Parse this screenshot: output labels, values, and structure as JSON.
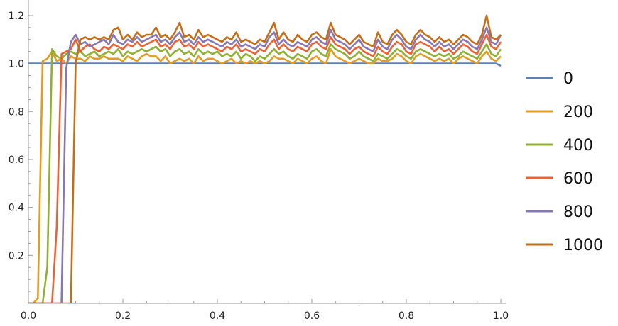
{
  "chart_data": {
    "type": "line",
    "title": "",
    "xlabel": "",
    "ylabel": "",
    "xlim": [
      0,
      1
    ],
    "ylim": [
      0,
      1.25
    ],
    "x_ticks": [
      "0.0",
      "0.2",
      "0.4",
      "0.6",
      "0.8",
      "1.0"
    ],
    "y_ticks": [
      "0.2",
      "0.4",
      "0.6",
      "0.8",
      "1.0",
      "1.2"
    ],
    "grid": false,
    "legend_position": "right",
    "x": [
      0.0,
      0.01,
      0.02,
      0.03,
      0.04,
      0.05,
      0.06,
      0.07,
      0.08,
      0.09,
      0.1,
      0.11,
      0.12,
      0.13,
      0.14,
      0.15,
      0.16,
      0.17,
      0.18,
      0.19,
      0.2,
      0.21,
      0.22,
      0.23,
      0.24,
      0.25,
      0.26,
      0.27,
      0.28,
      0.29,
      0.3,
      0.31,
      0.32,
      0.33,
      0.34,
      0.35,
      0.36,
      0.37,
      0.38,
      0.39,
      0.4,
      0.41,
      0.42,
      0.43,
      0.44,
      0.45,
      0.46,
      0.47,
      0.48,
      0.49,
      0.5,
      0.51,
      0.52,
      0.53,
      0.54,
      0.55,
      0.56,
      0.57,
      0.58,
      0.59,
      0.6,
      0.61,
      0.62,
      0.63,
      0.64,
      0.65,
      0.66,
      0.67,
      0.68,
      0.69,
      0.7,
      0.71,
      0.72,
      0.73,
      0.74,
      0.75,
      0.76,
      0.77,
      0.78,
      0.79,
      0.8,
      0.81,
      0.82,
      0.83,
      0.84,
      0.85,
      0.86,
      0.87,
      0.88,
      0.89,
      0.9,
      0.91,
      0.92,
      0.93,
      0.94,
      0.95,
      0.96,
      0.97,
      0.98,
      0.99,
      1.0
    ],
    "series": [
      {
        "name": "0",
        "color": "#5e81b5",
        "values": [
          1.0,
          1.0,
          1.0,
          1.0,
          1.0,
          1.0,
          1.0,
          1.0,
          1.0,
          1.0,
          1.0,
          1.0,
          1.0,
          1.0,
          1.0,
          1.0,
          1.0,
          1.0,
          1.0,
          1.0,
          1.0,
          1.0,
          1.0,
          1.0,
          1.0,
          1.0,
          1.0,
          1.0,
          1.0,
          1.0,
          1.0,
          1.0,
          1.0,
          1.0,
          1.0,
          1.0,
          1.0,
          1.0,
          1.0,
          1.0,
          1.0,
          1.0,
          1.0,
          1.0,
          1.0,
          1.0,
          1.0,
          1.0,
          1.0,
          1.0,
          1.0,
          1.0,
          1.0,
          1.0,
          1.0,
          1.0,
          1.0,
          1.0,
          1.0,
          1.0,
          1.0,
          1.0,
          1.0,
          1.0,
          1.0,
          1.0,
          1.0,
          1.0,
          1.0,
          1.0,
          1.0,
          1.0,
          1.0,
          1.0,
          1.0,
          1.0,
          1.0,
          1.0,
          1.0,
          1.0,
          1.0,
          1.0,
          1.0,
          1.0,
          1.0,
          1.0,
          1.0,
          1.0,
          1.0,
          1.0,
          1.0,
          1.0,
          1.0,
          1.0,
          1.0,
          1.0,
          1.0,
          1.0,
          1.0,
          1.0,
          0.99
        ]
      },
      {
        "name": "200",
        "color": "#e19c24",
        "values": [
          0.0,
          0.0,
          0.02,
          1.01,
          1.02,
          1.05,
          1.01,
          1.02,
          1.0,
          1.03,
          1.02,
          1.02,
          1.01,
          1.03,
          1.02,
          1.02,
          1.03,
          1.02,
          1.02,
          1.02,
          1.01,
          1.03,
          1.02,
          1.01,
          1.03,
          1.04,
          1.03,
          1.03,
          1.01,
          1.03,
          1.0,
          1.01,
          1.02,
          1.01,
          1.02,
          1.0,
          1.03,
          1.01,
          1.02,
          1.02,
          1.01,
          1.0,
          1.01,
          1.02,
          1.0,
          1.01,
          1.0,
          1.01,
          1.0,
          1.01,
          1.0,
          1.01,
          1.03,
          1.02,
          1.02,
          1.01,
          1.0,
          1.02,
          1.01,
          1.0,
          1.02,
          1.03,
          1.01,
          1.0,
          1.06,
          1.03,
          1.02,
          1.01,
          1.0,
          1.01,
          1.02,
          1.01,
          1.0,
          1.0,
          1.02,
          1.01,
          1.01,
          1.02,
          1.04,
          1.03,
          1.01,
          1.0,
          1.03,
          1.04,
          1.03,
          1.02,
          1.01,
          1.02,
          1.01,
          1.02,
          1.0,
          1.02,
          1.03,
          1.02,
          1.01,
          1.0,
          1.03,
          1.05,
          1.02,
          1.01,
          1.03
        ]
      },
      {
        "name": "400",
        "color": "#8fb032",
        "values": [
          0.0,
          0.0,
          0.0,
          0.0,
          0.15,
          1.06,
          1.03,
          1.02,
          1.04,
          1.05,
          1.04,
          1.05,
          1.03,
          1.04,
          1.05,
          1.03,
          1.04,
          1.05,
          1.04,
          1.06,
          1.03,
          1.05,
          1.04,
          1.05,
          1.06,
          1.05,
          1.06,
          1.07,
          1.05,
          1.06,
          1.03,
          1.05,
          1.06,
          1.04,
          1.05,
          1.03,
          1.06,
          1.04,
          1.05,
          1.04,
          1.05,
          1.03,
          1.04,
          1.03,
          1.05,
          1.02,
          1.04,
          1.03,
          1.01,
          1.03,
          1.02,
          1.04,
          1.06,
          1.04,
          1.05,
          1.03,
          1.02,
          1.04,
          1.03,
          1.02,
          1.05,
          1.06,
          1.04,
          1.03,
          1.08,
          1.06,
          1.05,
          1.04,
          1.02,
          1.03,
          1.05,
          1.03,
          1.02,
          1.01,
          1.04,
          1.03,
          1.02,
          1.04,
          1.06,
          1.05,
          1.03,
          1.02,
          1.05,
          1.06,
          1.05,
          1.04,
          1.03,
          1.04,
          1.03,
          1.04,
          1.02,
          1.03,
          1.05,
          1.04,
          1.03,
          1.02,
          1.05,
          1.08,
          1.04,
          1.03,
          1.06
        ]
      },
      {
        "name": "600",
        "color": "#eb6235",
        "values": [
          0.0,
          0.0,
          0.0,
          0.0,
          0.0,
          0.0,
          0.32,
          1.04,
          1.05,
          1.06,
          1.1,
          1.05,
          1.07,
          1.08,
          1.06,
          1.05,
          1.07,
          1.06,
          1.08,
          1.07,
          1.06,
          1.08,
          1.07,
          1.09,
          1.07,
          1.08,
          1.09,
          1.1,
          1.07,
          1.08,
          1.06,
          1.09,
          1.1,
          1.07,
          1.08,
          1.06,
          1.09,
          1.07,
          1.08,
          1.07,
          1.06,
          1.05,
          1.07,
          1.06,
          1.08,
          1.05,
          1.06,
          1.05,
          1.04,
          1.06,
          1.05,
          1.08,
          1.1,
          1.06,
          1.08,
          1.06,
          1.05,
          1.07,
          1.06,
          1.05,
          1.08,
          1.09,
          1.07,
          1.06,
          1.11,
          1.08,
          1.07,
          1.06,
          1.04,
          1.06,
          1.07,
          1.05,
          1.04,
          1.03,
          1.07,
          1.05,
          1.04,
          1.07,
          1.09,
          1.08,
          1.05,
          1.04,
          1.08,
          1.09,
          1.08,
          1.07,
          1.05,
          1.07,
          1.05,
          1.06,
          1.04,
          1.06,
          1.08,
          1.07,
          1.05,
          1.04,
          1.08,
          1.12,
          1.07,
          1.06,
          1.09
        ]
      },
      {
        "name": "800",
        "color": "#8778b3",
        "values": [
          0.0,
          0.0,
          0.0,
          0.0,
          0.0,
          0.0,
          0.0,
          0.0,
          0.98,
          1.09,
          1.12,
          1.08,
          1.09,
          1.07,
          1.08,
          1.09,
          1.1,
          1.08,
          1.12,
          1.09,
          1.08,
          1.1,
          1.09,
          1.11,
          1.09,
          1.1,
          1.11,
          1.12,
          1.09,
          1.1,
          1.08,
          1.11,
          1.13,
          1.09,
          1.1,
          1.08,
          1.11,
          1.09,
          1.1,
          1.09,
          1.08,
          1.07,
          1.09,
          1.08,
          1.1,
          1.07,
          1.08,
          1.07,
          1.06,
          1.08,
          1.07,
          1.11,
          1.13,
          1.08,
          1.1,
          1.08,
          1.07,
          1.09,
          1.08,
          1.07,
          1.1,
          1.11,
          1.09,
          1.08,
          1.14,
          1.1,
          1.09,
          1.08,
          1.06,
          1.08,
          1.1,
          1.07,
          1.06,
          1.05,
          1.1,
          1.07,
          1.06,
          1.1,
          1.12,
          1.1,
          1.07,
          1.06,
          1.1,
          1.12,
          1.1,
          1.09,
          1.07,
          1.09,
          1.07,
          1.08,
          1.06,
          1.08,
          1.1,
          1.09,
          1.07,
          1.06,
          1.1,
          1.15,
          1.09,
          1.08,
          1.12
        ]
      },
      {
        "name": "1000",
        "color": "#c56e1a",
        "values": [
          0.0,
          0.0,
          0.0,
          0.0,
          0.0,
          0.0,
          0.0,
          0.0,
          0.0,
          0.0,
          1.0,
          1.1,
          1.11,
          1.1,
          1.11,
          1.1,
          1.11,
          1.1,
          1.14,
          1.15,
          1.1,
          1.12,
          1.1,
          1.13,
          1.11,
          1.12,
          1.12,
          1.15,
          1.11,
          1.12,
          1.1,
          1.13,
          1.17,
          1.11,
          1.12,
          1.1,
          1.14,
          1.11,
          1.12,
          1.11,
          1.1,
          1.09,
          1.11,
          1.1,
          1.13,
          1.09,
          1.1,
          1.09,
          1.08,
          1.1,
          1.09,
          1.13,
          1.17,
          1.1,
          1.13,
          1.1,
          1.09,
          1.12,
          1.1,
          1.09,
          1.12,
          1.13,
          1.11,
          1.1,
          1.17,
          1.12,
          1.11,
          1.1,
          1.08,
          1.1,
          1.12,
          1.09,
          1.08,
          1.07,
          1.13,
          1.09,
          1.08,
          1.12,
          1.14,
          1.12,
          1.09,
          1.08,
          1.12,
          1.14,
          1.12,
          1.11,
          1.09,
          1.11,
          1.09,
          1.1,
          1.08,
          1.1,
          1.12,
          1.11,
          1.09,
          1.08,
          1.12,
          1.2,
          1.11,
          1.1,
          1.12
        ]
      }
    ]
  }
}
